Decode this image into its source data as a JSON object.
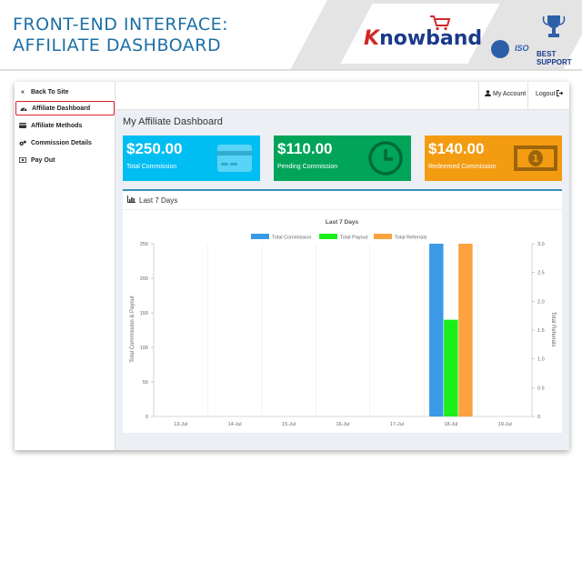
{
  "banner": {
    "title": "FRONT-END INTERFACE: AFFILIATE DASHBOARD",
    "logo_k": "K",
    "logo_rest": "nowband",
    "iso_label": "ISO",
    "best_support": "BEST SUPPORT"
  },
  "sidebar": {
    "items": [
      {
        "label": "Back To Site",
        "icon": "chevron-left-icon"
      },
      {
        "label": "Affiliate Dashboard",
        "icon": "dashboard-icon",
        "active": true
      },
      {
        "label": "Affiliate Methods",
        "icon": "credit-card-icon"
      },
      {
        "label": "Commission Details",
        "icon": "cogs-icon"
      },
      {
        "label": "Pay Out",
        "icon": "money-icon"
      }
    ]
  },
  "topbar": {
    "my_account": "My Account",
    "logout": "Logout"
  },
  "page": {
    "title": "My Affiliate Dashboard"
  },
  "cards": [
    {
      "amount": "$250.00",
      "label": "Total Commission",
      "color": "#00bdf2",
      "icon": "credit-card-icon"
    },
    {
      "amount": "$110.00",
      "label": "Pending Commission",
      "color": "#00a559",
      "icon": "clock-icon"
    },
    {
      "amount": "$140.00",
      "label": "Redeemed Commission",
      "color": "#f39c12",
      "icon": "money-icon"
    }
  ],
  "panel": {
    "title": "Last 7 Days",
    "icon": "bar-chart-icon"
  },
  "chart_data": {
    "type": "bar",
    "title": "Last 7 Days",
    "categories": [
      "13-Jul",
      "14-Jul",
      "15-Jul",
      "16-Jul",
      "17-Jul",
      "18-Jul",
      "19-Jul"
    ],
    "series": [
      {
        "name": "Total Commission",
        "axis": "left",
        "color": "#3a9ae6",
        "values": [
          0,
          0,
          0,
          0,
          0,
          250,
          0
        ]
      },
      {
        "name": "Total Payout",
        "axis": "left",
        "color": "#1aef1a",
        "values": [
          0,
          0,
          0,
          0,
          0,
          140,
          0
        ]
      },
      {
        "name": "Total Referrals",
        "axis": "right",
        "color": "#fca23f",
        "values": [
          0,
          0,
          0,
          0,
          0,
          3,
          0
        ]
      }
    ],
    "ylabel_left": "Total Commission & Payout",
    "ylabel_right": "Total Referrals",
    "ylim_left": [
      0,
      250
    ],
    "ylim_right": [
      0,
      3
    ],
    "yticks_left": [
      "0",
      "50",
      "100",
      "150",
      "200",
      "250"
    ],
    "yticks_right": [
      "0",
      "0.5",
      "1.0",
      "1.5",
      "2.0",
      "2.5",
      "3.0"
    ],
    "legend": "top-center",
    "grid": true
  }
}
